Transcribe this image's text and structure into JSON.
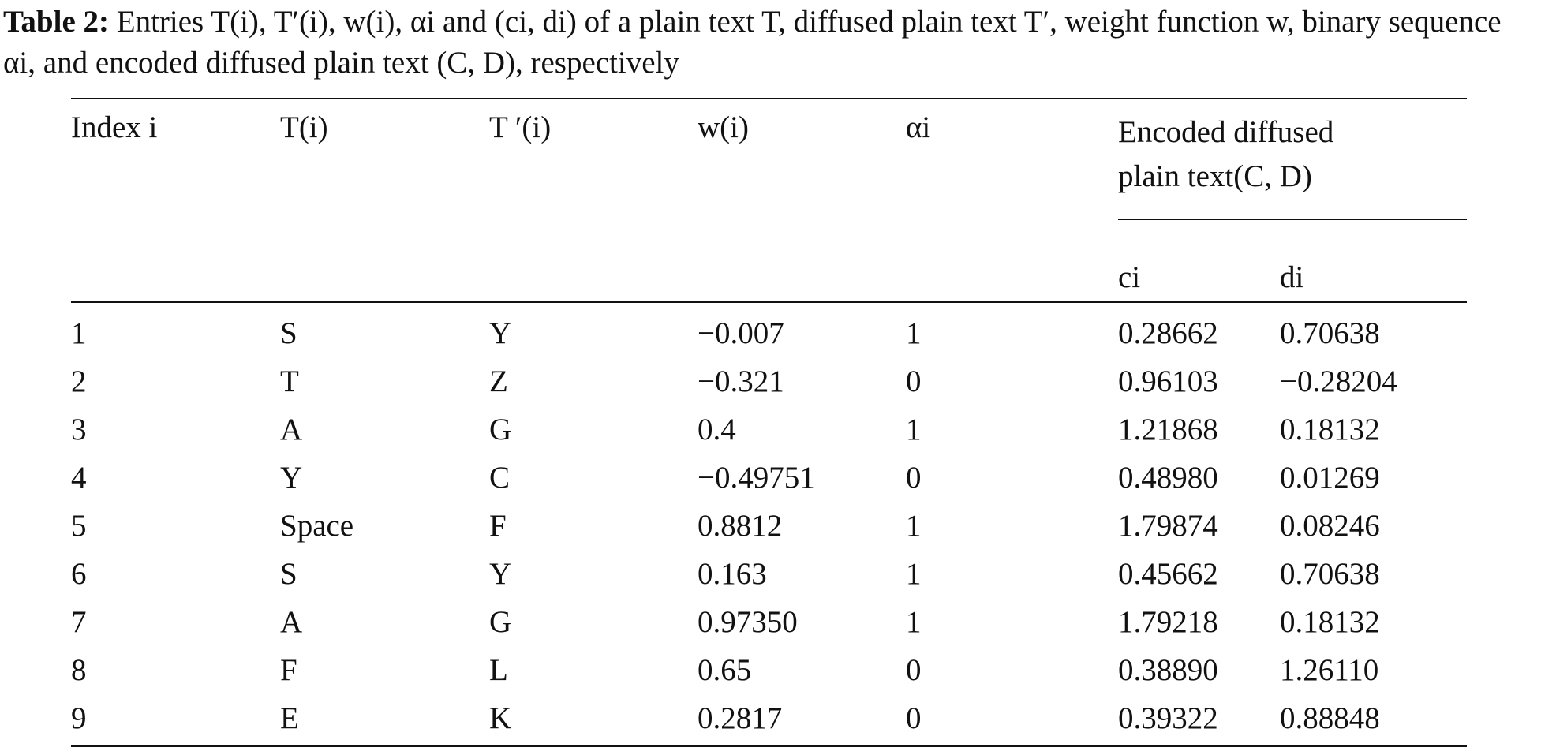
{
  "caption": {
    "label": "Table 2:",
    "text": "Entries T(i), T′(i), w(i), αi and (ci, di) of a plain text T, diffused plain text T′, weight function w, binary sequence αi, and encoded diffused plain text (C, D), respectively"
  },
  "table": {
    "headers": [
      "Index i",
      "T(i)",
      "T ′(i)",
      "w(i)",
      "αi",
      "Encoded diffused plain text(C, D)"
    ],
    "subheaders": [
      "ci",
      "di"
    ],
    "rows": [
      [
        "1",
        "S",
        "Y",
        "−0.007",
        "1",
        "0.28662",
        "0.70638"
      ],
      [
        "2",
        "T",
        "Z",
        "−0.321",
        "0",
        "0.96103",
        "−0.28204"
      ],
      [
        "3",
        "A",
        "G",
        "0.4",
        "1",
        "1.21868",
        "0.18132"
      ],
      [
        "4",
        "Y",
        "C",
        "−0.49751",
        "0",
        "0.48980",
        "0.01269"
      ],
      [
        "5",
        "Space",
        "F",
        "0.8812",
        "1",
        "1.79874",
        "0.08246"
      ],
      [
        "6",
        "S",
        "Y",
        "0.163",
        "1",
        "0.45662",
        "0.70638"
      ],
      [
        "7",
        "A",
        "G",
        "0.97350",
        "1",
        "1.79218",
        "0.18132"
      ],
      [
        "8",
        "F",
        "L",
        "0.65",
        "0",
        "0.38890",
        "1.26110"
      ],
      [
        "9",
        "E",
        "K",
        "0.2817",
        "0",
        "0.39322",
        "0.88848"
      ]
    ]
  }
}
